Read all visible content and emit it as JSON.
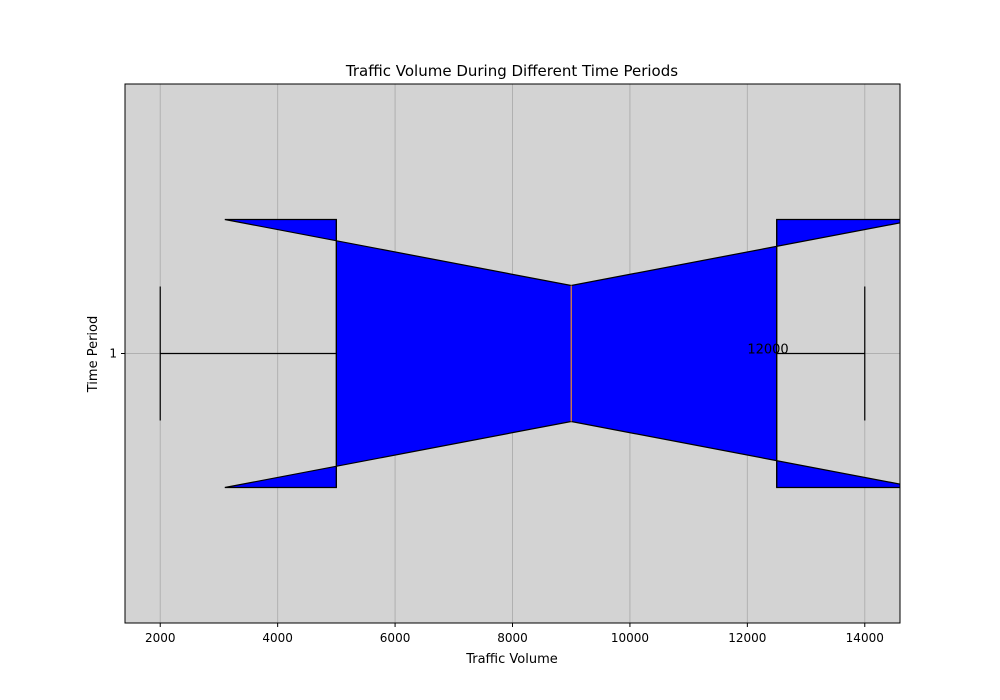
{
  "chart_data": {
    "type": "boxplot",
    "title": "Traffic Volume During Different Time Periods",
    "xlabel": "Traffic Volume",
    "ylabel": "Time Period",
    "orientation": "horizontal",
    "notched": true,
    "xlim": [
      1400,
      14600
    ],
    "x_ticks": [
      2000,
      4000,
      6000,
      8000,
      10000,
      12000,
      14000
    ],
    "y_ticks": [
      "1"
    ],
    "grid": true,
    "series": [
      {
        "category": "1",
        "whisker_low": 2000,
        "q1": 5000,
        "median": 9000,
        "q3": 12500,
        "whisker_high": 14000,
        "notch_low": 3100,
        "notch_high": 14900
      }
    ],
    "annotations": [
      {
        "text": "12000",
        "x": 12000
      }
    ],
    "colors": {
      "plot_background": "#d3d3d3",
      "box_fill": "#0000ff",
      "median_line": "#f28e2b",
      "grid": "#b0b0b0",
      "edge": "#000000"
    }
  }
}
